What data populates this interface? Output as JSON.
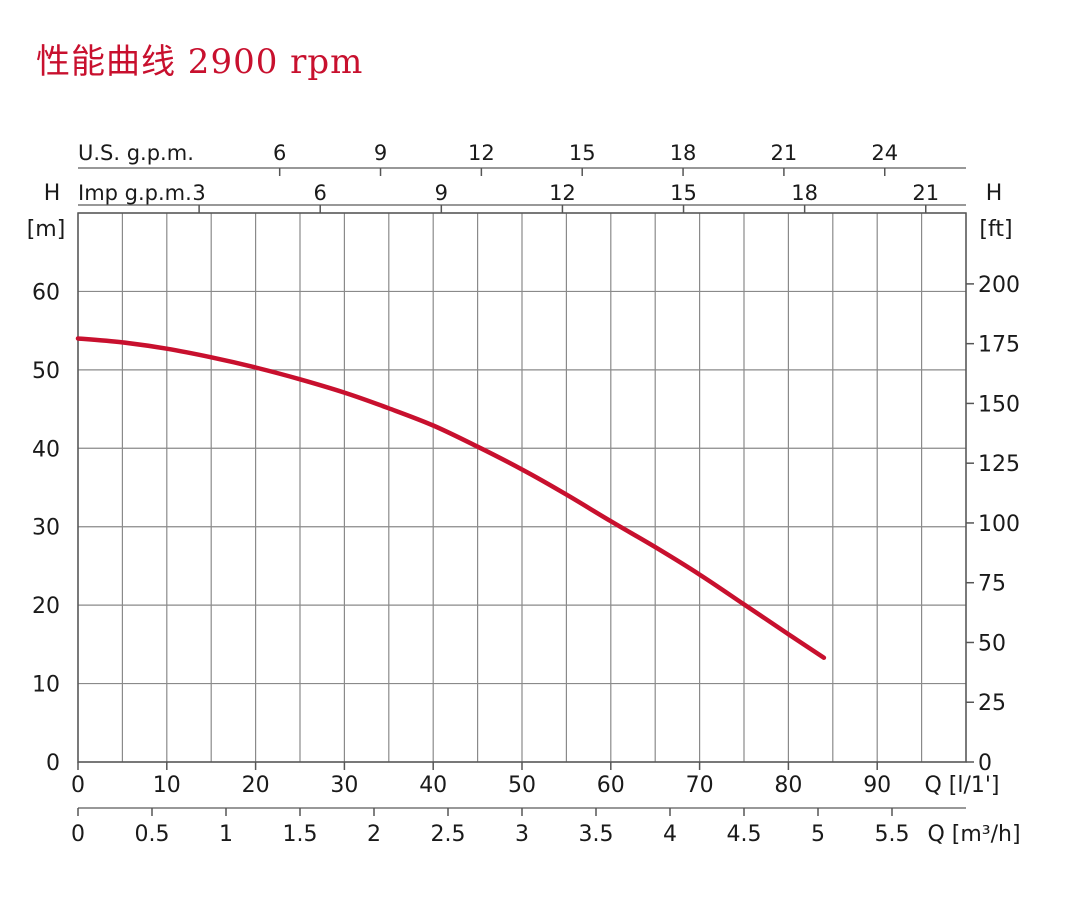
{
  "title": "性能曲线 2900 rpm",
  "chart_data": {
    "type": "line",
    "title": "性能曲线 2900 rpm",
    "curve_color": "#c8102e",
    "grid": true,
    "series": [
      {
        "x": [
          0,
          5,
          10,
          15,
          20,
          25,
          30,
          35,
          40,
          45,
          50,
          55,
          60,
          65,
          70,
          75,
          80,
          84
        ],
        "y": [
          54,
          53.5,
          52.7,
          51.6,
          50.3,
          48.8,
          47.1,
          45.1,
          42.9,
          40.2,
          37.3,
          34.1,
          30.7,
          27.4,
          23.9,
          20.1,
          16.3,
          13.3
        ]
      }
    ],
    "left_axis": {
      "label": "H",
      "unit": "[m]",
      "ticks": [
        "0",
        "10",
        "20",
        "30",
        "40",
        "50",
        "60"
      ],
      "range": [
        0,
        70
      ]
    },
    "right_axis": {
      "label": "H",
      "unit": "[ft]",
      "ticks": [
        "0",
        "25",
        "50",
        "75",
        "100",
        "125",
        "150",
        "175",
        "200"
      ]
    },
    "bottom_axis_1": {
      "label": "Q [l/1']",
      "ticks": [
        "0",
        "10",
        "20",
        "30",
        "40",
        "50",
        "60",
        "70",
        "80",
        "90"
      ],
      "range": [
        0,
        100
      ]
    },
    "bottom_axis_2": {
      "label": "Q [m³/h]",
      "ticks": [
        "0",
        "0.5",
        "1",
        "1.5",
        "2",
        "2.5",
        "3",
        "3.5",
        "4",
        "4.5",
        "5",
        "5.5"
      ]
    },
    "top_axis_1": {
      "label": "U.S. g.p.m.",
      "ticks": [
        "6",
        "9",
        "12",
        "15",
        "18",
        "21",
        "24"
      ]
    },
    "top_axis_2": {
      "label": "Imp g.p.m.",
      "ticks": [
        "3",
        "6",
        "9",
        "12",
        "15",
        "18",
        "21"
      ]
    }
  }
}
